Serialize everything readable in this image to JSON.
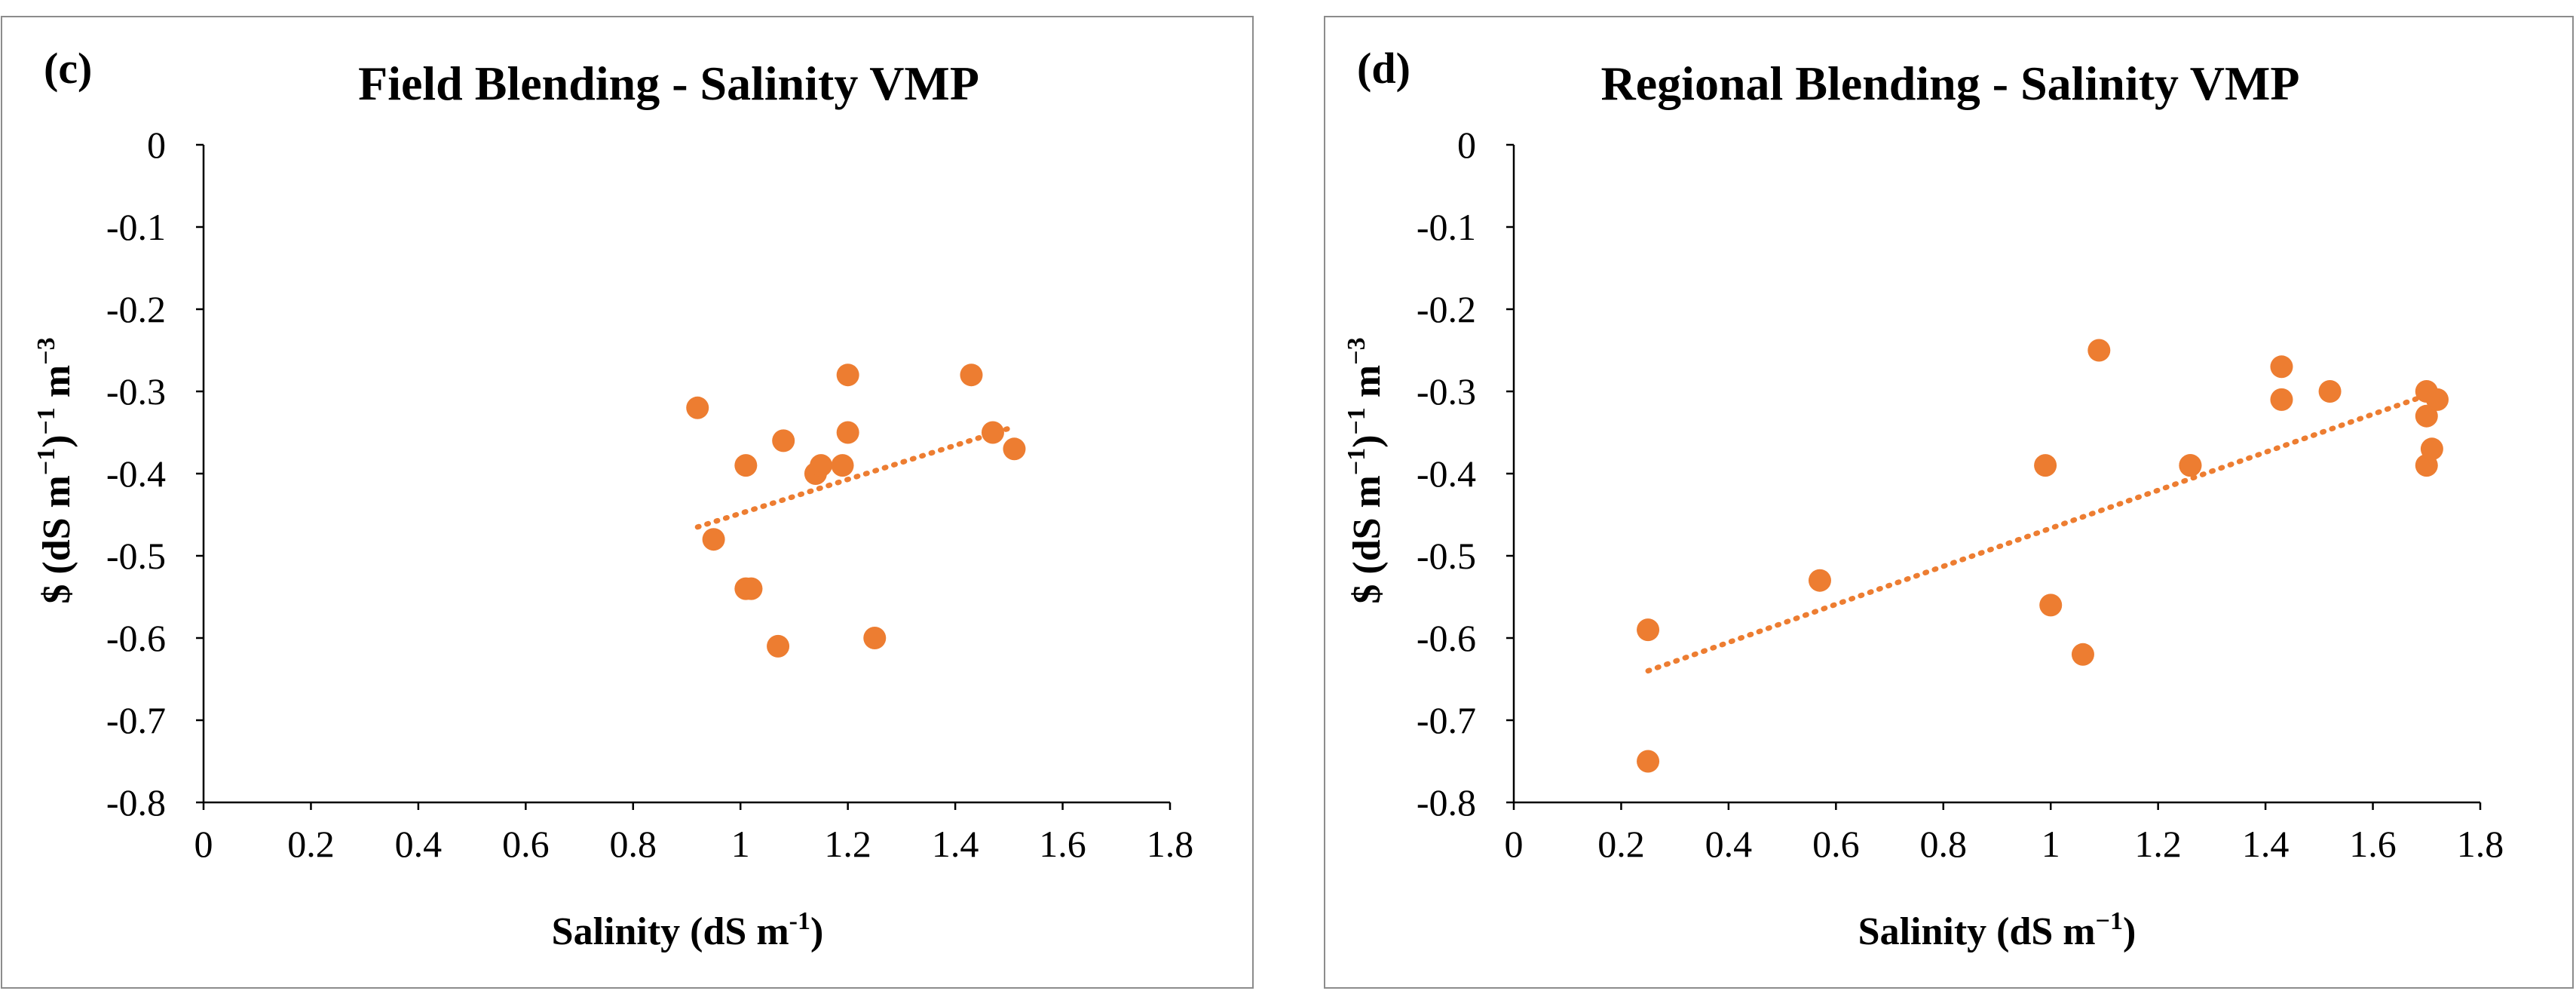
{
  "chart_data": [
    {
      "type": "scatter",
      "panel_label": "(c)",
      "title": "Field Blending - Salinity VMP",
      "xlabel": "Salinity (dS m-1)",
      "ylabel": "$ (dS m−1)−1 m−3",
      "xlim": [
        0,
        1.8
      ],
      "ylim": [
        -0.8,
        0
      ],
      "xticks": [
        0,
        0.2,
        0.4,
        0.6,
        0.8,
        1,
        1.2,
        1.4,
        1.6,
        1.8
      ],
      "yticks": [
        0,
        -0.1,
        -0.2,
        -0.3,
        -0.4,
        -0.5,
        -0.6,
        -0.7,
        -0.8
      ],
      "grid": false,
      "marker_color": "#ED7D31",
      "trendline": {
        "style": "dotted linear",
        "x": [
          0.92,
          1.5
        ],
        "y": [
          -0.465,
          -0.345
        ]
      },
      "points": [
        {
          "x": 0.92,
          "y": -0.32
        },
        {
          "x": 0.95,
          "y": -0.48
        },
        {
          "x": 1.01,
          "y": -0.39
        },
        {
          "x": 1.01,
          "y": -0.54
        },
        {
          "x": 1.02,
          "y": -0.54
        },
        {
          "x": 1.07,
          "y": -0.61
        },
        {
          "x": 1.08,
          "y": -0.36
        },
        {
          "x": 1.14,
          "y": -0.4
        },
        {
          "x": 1.15,
          "y": -0.39
        },
        {
          "x": 1.19,
          "y": -0.39
        },
        {
          "x": 1.2,
          "y": -0.35
        },
        {
          "x": 1.2,
          "y": -0.28
        },
        {
          "x": 1.25,
          "y": -0.6
        },
        {
          "x": 1.43,
          "y": -0.28
        },
        {
          "x": 1.47,
          "y": -0.35
        },
        {
          "x": 1.51,
          "y": -0.37
        }
      ]
    },
    {
      "type": "scatter",
      "panel_label": "(d)",
      "title": "Regional Blending - Salinity VMP",
      "xlabel": "Salinity (dS m−1)",
      "ylabel": "$ (dS m−1)−1 m−3",
      "xlim": [
        0,
        1.8
      ],
      "ylim": [
        -0.8,
        0
      ],
      "xticks": [
        0,
        0.2,
        0.4,
        0.6,
        0.8,
        1,
        1.2,
        1.4,
        1.6,
        1.8
      ],
      "yticks": [
        0,
        -0.1,
        -0.2,
        -0.3,
        -0.4,
        -0.5,
        -0.6,
        -0.7,
        -0.8
      ],
      "grid": false,
      "marker_color": "#ED7D31",
      "trendline": {
        "style": "dotted linear",
        "x": [
          0.25,
          1.72
        ],
        "y": [
          -0.64,
          -0.3
        ]
      },
      "points": [
        {
          "x": 0.25,
          "y": -0.59
        },
        {
          "x": 0.25,
          "y": -0.75
        },
        {
          "x": 0.57,
          "y": -0.53
        },
        {
          "x": 0.99,
          "y": -0.39
        },
        {
          "x": 1.0,
          "y": -0.56
        },
        {
          "x": 1.06,
          "y": -0.62
        },
        {
          "x": 1.09,
          "y": -0.25
        },
        {
          "x": 1.26,
          "y": -0.39
        },
        {
          "x": 1.26,
          "y": -0.39
        },
        {
          "x": 1.43,
          "y": -0.27
        },
        {
          "x": 1.43,
          "y": -0.31
        },
        {
          "x": 1.52,
          "y": -0.3
        },
        {
          "x": 1.7,
          "y": -0.3
        },
        {
          "x": 1.7,
          "y": -0.33
        },
        {
          "x": 1.7,
          "y": -0.39
        },
        {
          "x": 1.71,
          "y": -0.37
        },
        {
          "x": 1.72,
          "y": -0.31
        }
      ]
    }
  ]
}
